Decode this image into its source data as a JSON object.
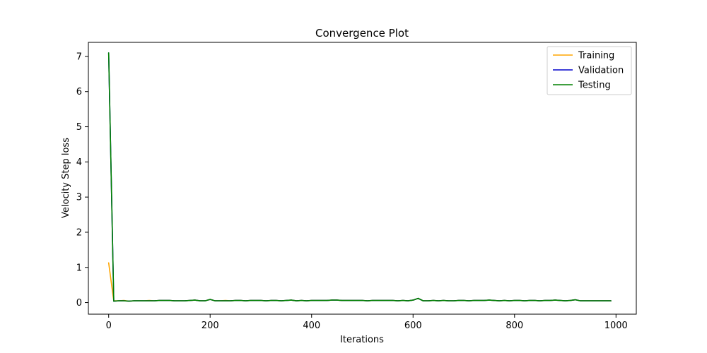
{
  "chart_data": {
    "type": "line",
    "title": "Convergence Plot",
    "xlabel": "Iterations",
    "ylabel": "Velocity Step loss",
    "xlim": [
      -40,
      1040
    ],
    "ylim": [
      -0.33,
      7.4
    ],
    "xticks": [
      0,
      200,
      400,
      600,
      800,
      1000
    ],
    "yticks": [
      0,
      1,
      2,
      3,
      4,
      5,
      6,
      7
    ],
    "grid": false,
    "legend_position": "top-right",
    "x": [
      0,
      10,
      20,
      30,
      40,
      50,
      60,
      70,
      80,
      90,
      100,
      110,
      120,
      130,
      140,
      150,
      160,
      170,
      180,
      190,
      200,
      210,
      220,
      230,
      240,
      250,
      260,
      270,
      280,
      290,
      300,
      310,
      320,
      330,
      340,
      350,
      360,
      370,
      380,
      390,
      400,
      410,
      420,
      430,
      440,
      450,
      460,
      470,
      480,
      490,
      500,
      510,
      520,
      530,
      540,
      550,
      560,
      570,
      580,
      590,
      600,
      610,
      620,
      630,
      640,
      650,
      660,
      670,
      680,
      690,
      700,
      710,
      720,
      730,
      740,
      750,
      760,
      770,
      780,
      790,
      800,
      810,
      820,
      830,
      840,
      850,
      860,
      870,
      880,
      890,
      900,
      910,
      920,
      930,
      940,
      950,
      960,
      970,
      980,
      990
    ],
    "series": [
      {
        "name": "Training",
        "color": "#ffa500",
        "values": [
          1.13,
          0.05,
          0.05,
          0.06,
          0.04,
          0.05,
          0.05,
          0.05,
          0.06,
          0.05,
          0.06,
          0.06,
          0.06,
          0.05,
          0.05,
          0.05,
          0.06,
          0.07,
          0.05,
          0.05,
          0.09,
          0.05,
          0.05,
          0.06,
          0.05,
          0.06,
          0.06,
          0.05,
          0.06,
          0.06,
          0.06,
          0.05,
          0.06,
          0.06,
          0.05,
          0.06,
          0.07,
          0.05,
          0.06,
          0.05,
          0.06,
          0.06,
          0.06,
          0.06,
          0.07,
          0.07,
          0.06,
          0.06,
          0.06,
          0.06,
          0.06,
          0.05,
          0.06,
          0.06,
          0.06,
          0.06,
          0.06,
          0.05,
          0.06,
          0.05,
          0.07,
          0.12,
          0.05,
          0.05,
          0.06,
          0.05,
          0.06,
          0.05,
          0.05,
          0.06,
          0.06,
          0.05,
          0.06,
          0.06,
          0.06,
          0.07,
          0.06,
          0.05,
          0.06,
          0.05,
          0.06,
          0.06,
          0.05,
          0.06,
          0.06,
          0.05,
          0.06,
          0.06,
          0.07,
          0.06,
          0.05,
          0.06,
          0.08,
          0.05,
          0.05,
          0.05,
          0.05,
          0.05,
          0.05,
          0.05
        ]
      },
      {
        "name": "Validation",
        "color": "#0000cc",
        "values": [
          7.1,
          0.04,
          0.05,
          0.05,
          0.04,
          0.05,
          0.05,
          0.05,
          0.05,
          0.05,
          0.06,
          0.06,
          0.06,
          0.05,
          0.05,
          0.05,
          0.06,
          0.07,
          0.05,
          0.05,
          0.09,
          0.05,
          0.05,
          0.05,
          0.05,
          0.06,
          0.06,
          0.05,
          0.06,
          0.06,
          0.06,
          0.05,
          0.06,
          0.06,
          0.05,
          0.06,
          0.07,
          0.05,
          0.06,
          0.05,
          0.06,
          0.06,
          0.06,
          0.06,
          0.07,
          0.07,
          0.06,
          0.06,
          0.06,
          0.06,
          0.06,
          0.05,
          0.06,
          0.06,
          0.06,
          0.06,
          0.06,
          0.05,
          0.06,
          0.05,
          0.07,
          0.12,
          0.05,
          0.05,
          0.06,
          0.05,
          0.06,
          0.05,
          0.05,
          0.06,
          0.06,
          0.05,
          0.06,
          0.06,
          0.06,
          0.07,
          0.06,
          0.05,
          0.06,
          0.05,
          0.06,
          0.06,
          0.05,
          0.06,
          0.06,
          0.05,
          0.06,
          0.06,
          0.07,
          0.06,
          0.05,
          0.06,
          0.08,
          0.05,
          0.05,
          0.05,
          0.05,
          0.05,
          0.05,
          0.05
        ]
      },
      {
        "name": "Testing",
        "color": "#008000",
        "values": [
          7.1,
          0.04,
          0.05,
          0.05,
          0.04,
          0.05,
          0.05,
          0.05,
          0.05,
          0.05,
          0.06,
          0.06,
          0.06,
          0.05,
          0.05,
          0.05,
          0.06,
          0.07,
          0.05,
          0.05,
          0.09,
          0.05,
          0.05,
          0.05,
          0.05,
          0.06,
          0.06,
          0.05,
          0.06,
          0.06,
          0.06,
          0.05,
          0.06,
          0.06,
          0.05,
          0.06,
          0.07,
          0.05,
          0.06,
          0.05,
          0.06,
          0.06,
          0.06,
          0.06,
          0.07,
          0.07,
          0.06,
          0.06,
          0.06,
          0.06,
          0.06,
          0.05,
          0.06,
          0.06,
          0.06,
          0.06,
          0.06,
          0.05,
          0.06,
          0.05,
          0.07,
          0.12,
          0.05,
          0.05,
          0.06,
          0.05,
          0.06,
          0.05,
          0.05,
          0.06,
          0.06,
          0.05,
          0.06,
          0.06,
          0.06,
          0.07,
          0.06,
          0.05,
          0.06,
          0.05,
          0.06,
          0.06,
          0.05,
          0.06,
          0.06,
          0.05,
          0.06,
          0.06,
          0.07,
          0.06,
          0.05,
          0.06,
          0.08,
          0.05,
          0.05,
          0.05,
          0.05,
          0.05,
          0.05,
          0.05
        ]
      }
    ]
  }
}
